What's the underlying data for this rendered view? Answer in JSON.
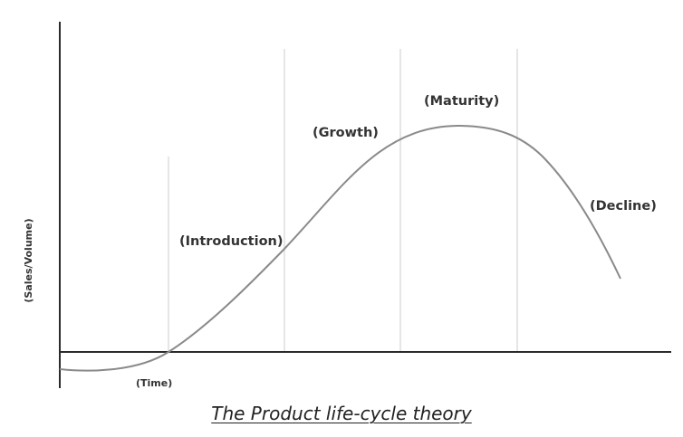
{
  "diagram": {
    "stages": [
      {
        "label": "(Introduction)"
      },
      {
        "label": "(Growth)"
      },
      {
        "label": "(Maturity)"
      },
      {
        "label": "(Decline)"
      }
    ],
    "axis": {
      "x_label": "(Time)",
      "y_label": "(Sales/Volume)"
    },
    "colors": {
      "axis": "#2b2b2b",
      "curve": "#8a8a8a",
      "divider": "#d4d4d4",
      "text": "#333333"
    }
  },
  "caption": "The Product life-cycle theory"
}
